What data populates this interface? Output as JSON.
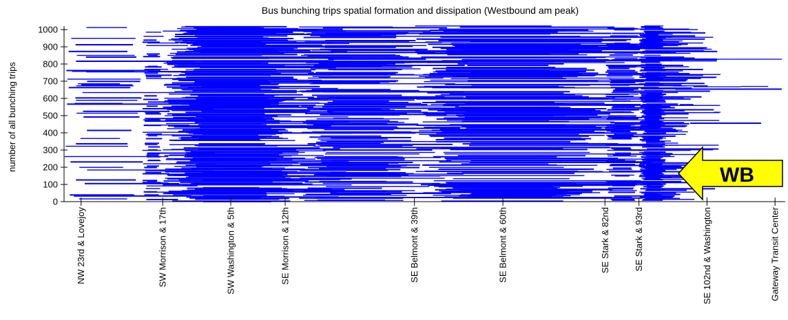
{
  "chart_data": {
    "type": "heatmap",
    "title": "Bus bunching trips spatial formation and dissipation (Westbound am peak)",
    "xlabel": "",
    "ylabel": "number of all bunching trips",
    "ylim": [
      0,
      1020
    ],
    "yticks": [
      0,
      100,
      200,
      300,
      400,
      500,
      600,
      700,
      800,
      900,
      1000
    ],
    "grid": false,
    "stops": [
      {
        "name": "NW 23rd & Lovejoy",
        "position": 0
      },
      {
        "name": "SW Morrison & 17th",
        "position": 12
      },
      {
        "name": "SW Washington & 5th",
        "position": 22
      },
      {
        "name": "SE Morrison & 12th",
        "position": 30
      },
      {
        "name": "SE Belmont & 39th",
        "position": 49
      },
      {
        "name": "SE Belmont & 60th",
        "position": 62
      },
      {
        "name": "SE Stark & 82nd",
        "position": 77
      },
      {
        "name": "SE Stark & 93rd",
        "position": 82
      },
      {
        "name": "SE 102nd & Washington",
        "position": 92
      },
      {
        "name": "Gateway Transit Center",
        "position": 102
      }
    ],
    "xlim": [
      -2.5,
      103.5
    ],
    "series_color": "#0000ff",
    "density_by_segment": [
      {
        "from": -2.5,
        "to": 9,
        "level": 0.12
      },
      {
        "from": 9,
        "to": 12,
        "level": 0.18
      },
      {
        "from": 12,
        "to": 32,
        "level": 0.75
      },
      {
        "from": 32,
        "to": 49,
        "level": 0.5
      },
      {
        "from": 49,
        "to": 77,
        "level": 0.55
      },
      {
        "from": 77,
        "to": 82,
        "level": 0.3
      },
      {
        "from": 82,
        "to": 86,
        "level": 0.7
      },
      {
        "from": 86,
        "to": 103.5,
        "level": 0.02
      }
    ],
    "annotation": {
      "text": "WB",
      "color": "#ffff00",
      "direction": "left"
    }
  }
}
